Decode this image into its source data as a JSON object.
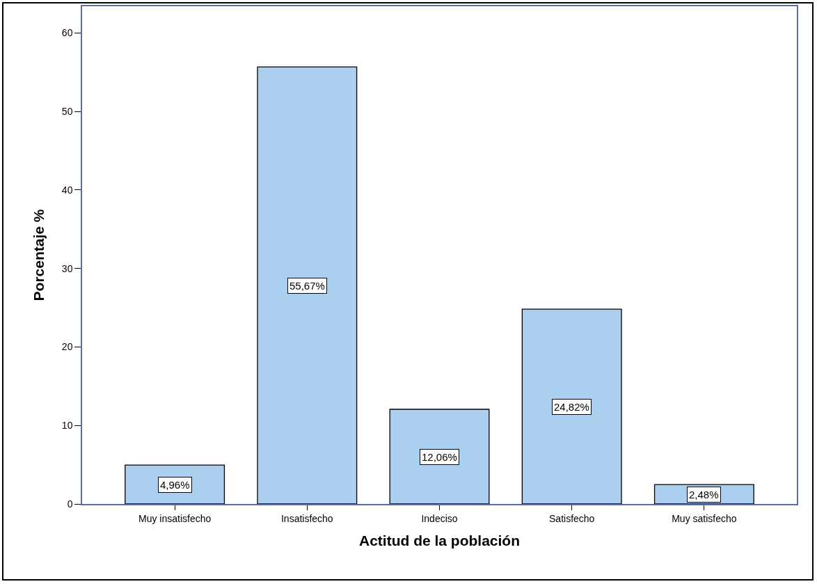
{
  "chart_data": {
    "type": "bar",
    "xlabel": "Actitud de la población",
    "ylabel": "Porcentaje %",
    "categories": [
      "Muy insatisfecho",
      "Insatisfecho",
      "Indeciso",
      "Satisfecho",
      "Muy satisfecho"
    ],
    "values": [
      4.96,
      55.67,
      12.06,
      24.82,
      2.48
    ],
    "value_labels": [
      "4,96%",
      "55,67%",
      "12,06%",
      "24,82%",
      "2,48%"
    ],
    "color": "#abcfee",
    "ylim": [
      0,
      63.4
    ],
    "yticks": [
      0,
      10,
      20,
      30,
      40,
      50,
      60
    ],
    "grid": false
  }
}
